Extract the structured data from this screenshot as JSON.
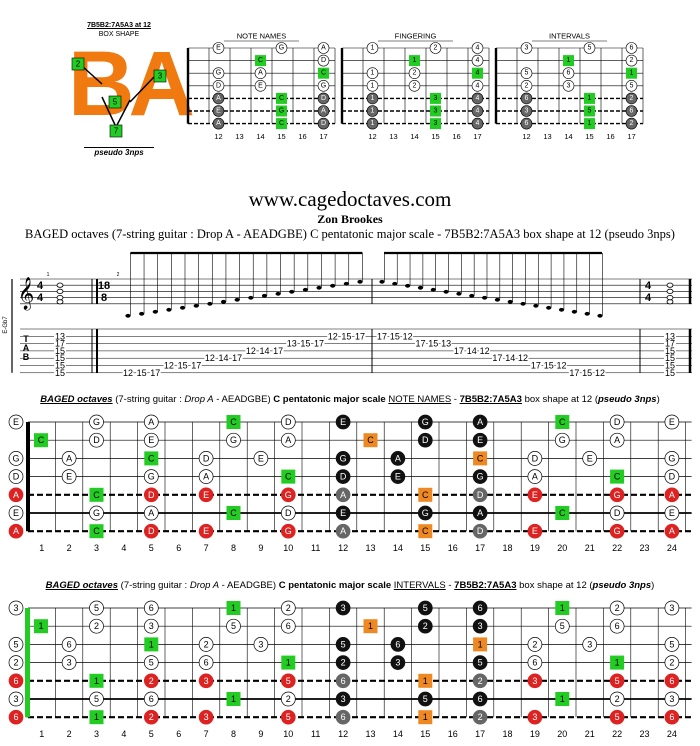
{
  "box": {
    "title": "7B5B2:7A5A3 at 12",
    "subtitle": "BOX SHAPE",
    "letters": "BA",
    "caption": "pseudo 3nps",
    "callouts": [
      "2",
      "5",
      "3",
      "5",
      "7"
    ]
  },
  "mini": [
    {
      "title": "NOTE NAMES",
      "rows": [
        [
          "E",
          "",
          "",
          "G",
          "",
          "A"
        ],
        [
          "",
          "",
          "C",
          "",
          "",
          "D"
        ],
        [
          "G",
          "",
          "A",
          "",
          "",
          "C"
        ],
        [
          "D",
          "",
          "E",
          "",
          "",
          "G"
        ],
        [
          "A",
          "",
          "",
          "C",
          "",
          "D"
        ],
        [
          "E",
          "",
          "",
          "G",
          "",
          "A"
        ],
        [
          "A",
          "",
          "",
          "C",
          "",
          "D"
        ]
      ],
      "hl": [
        [
          1,
          2
        ],
        [
          2,
          5
        ],
        [
          4,
          3
        ],
        [
          5,
          3
        ],
        [
          6,
          3
        ]
      ]
    },
    {
      "title": "FINGERING",
      "rows": [
        [
          "1",
          "",
          "",
          "2",
          "",
          "4"
        ],
        [
          "",
          "",
          "1",
          "",
          "",
          "4"
        ],
        [
          "1",
          "",
          "2",
          "",
          "",
          "4"
        ],
        [
          "1",
          "",
          "2",
          "",
          "",
          "4"
        ],
        [
          "1",
          "",
          "",
          "3",
          "",
          "4"
        ],
        [
          "1",
          "",
          "",
          "3",
          "",
          "4"
        ],
        [
          "1",
          "",
          "",
          "3",
          "",
          "4"
        ]
      ],
      "hl": [
        [
          1,
          2
        ],
        [
          2,
          5
        ],
        [
          4,
          3
        ],
        [
          5,
          3
        ],
        [
          6,
          3
        ]
      ]
    },
    {
      "title": "INTERVALS",
      "rows": [
        [
          "3",
          "",
          "",
          "5",
          "",
          "6"
        ],
        [
          "",
          "",
          "1",
          "",
          "",
          "2"
        ],
        [
          "5",
          "",
          "6",
          "",
          "",
          "1"
        ],
        [
          "2",
          "",
          "3",
          "",
          "",
          "5"
        ],
        [
          "6",
          "",
          "",
          "1",
          "",
          "2"
        ],
        [
          "3",
          "",
          "",
          "5",
          "",
          "6"
        ],
        [
          "6",
          "",
          "",
          "1",
          "",
          "2"
        ]
      ],
      "hl": [
        [
          1,
          2
        ],
        [
          2,
          5
        ],
        [
          4,
          3
        ],
        [
          5,
          3
        ],
        [
          6,
          3
        ]
      ]
    }
  ],
  "mini_frets": [
    "12",
    "13",
    "14",
    "15",
    "16",
    "17"
  ],
  "site": "www.cagedoctaves.com",
  "author": "Zon Brookes",
  "subtitle": "BAGED octaves (7-string guitar : Drop A - AEADGBE) C pentatonic major scale - 7B5B2:7A5A3 box shape at 12 (pseudo 3nps)",
  "score": {
    "time_sig_a": [
      "4",
      "4"
    ],
    "time_sig_b": [
      "18",
      "8"
    ],
    "tuning_label": "E-Gb7",
    "tab_letters": [
      "T",
      "A",
      "B"
    ],
    "measure_numbers": [
      "1",
      "2"
    ],
    "tab_chord_1": [
      "13",
      "17",
      "15",
      "15",
      "15",
      "15"
    ],
    "tab_run_up": [
      [
        "12",
        "15",
        "17"
      ],
      [
        "12",
        "15",
        "17"
      ],
      [
        "12",
        "14",
        "17"
      ],
      [
        "12",
        "14",
        "17"
      ],
      [
        "13",
        "15",
        "17"
      ],
      [
        "12",
        "15",
        "17"
      ]
    ],
    "tab_run_down": [
      [
        "17",
        "15",
        "12"
      ],
      [
        "17",
        "15",
        "13"
      ],
      [
        "17",
        "14",
        "12"
      ],
      [
        "17",
        "14",
        "12"
      ],
      [
        "17",
        "15",
        "12"
      ],
      [
        "17",
        "15",
        "12"
      ]
    ],
    "tab_chord_2": [
      "13",
      "17",
      "15",
      "15",
      "15",
      "15"
    ]
  },
  "big1": {
    "title_parts": [
      "BAGED octaves",
      " (7-string guitar : ",
      "Drop A",
      " - AEADGBE) ",
      "C pentatonic major scale",
      " ",
      "NOTE NAMES",
      " - ",
      "7B5B2:7A5A3",
      " box shape at 12 (",
      "pseudo 3nps",
      ")"
    ],
    "open": [
      "E",
      "",
      "G",
      "D",
      "A",
      "E",
      "A"
    ],
    "cells": [
      [
        [
          3,
          "G",
          "w"
        ],
        [
          5,
          "A",
          "w"
        ],
        [
          8,
          "C",
          "g"
        ],
        [
          10,
          "D",
          "w"
        ],
        [
          12,
          "E",
          "b"
        ],
        [
          15,
          "G",
          "b"
        ],
        [
          17,
          "A",
          "b"
        ],
        [
          20,
          "C",
          "g"
        ],
        [
          22,
          "D",
          "w"
        ],
        [
          24,
          "E",
          "w"
        ]
      ],
      [
        [
          1,
          "C",
          "g"
        ],
        [
          3,
          "D",
          "w"
        ],
        [
          5,
          "E",
          "w"
        ],
        [
          8,
          "G",
          "w"
        ],
        [
          10,
          "A",
          "w"
        ],
        [
          13,
          "C",
          "o"
        ],
        [
          15,
          "D",
          "b"
        ],
        [
          17,
          "E",
          "b"
        ],
        [
          20,
          "G",
          "w"
        ],
        [
          22,
          "A",
          "w"
        ]
      ],
      [
        [
          2,
          "A",
          "w"
        ],
        [
          5,
          "C",
          "g"
        ],
        [
          7,
          "D",
          "w"
        ],
        [
          9,
          "E",
          "w"
        ],
        [
          12,
          "G",
          "b"
        ],
        [
          14,
          "A",
          "b"
        ],
        [
          17,
          "C",
          "o"
        ],
        [
          19,
          "D",
          "w"
        ],
        [
          21,
          "E",
          "w"
        ],
        [
          24,
          "G",
          "w"
        ]
      ],
      [
        [
          2,
          "E",
          "w"
        ],
        [
          5,
          "G",
          "w"
        ],
        [
          7,
          "A",
          "w"
        ],
        [
          10,
          "C",
          "g"
        ],
        [
          12,
          "D",
          "b"
        ],
        [
          14,
          "E",
          "b"
        ],
        [
          17,
          "G",
          "b"
        ],
        [
          19,
          "A",
          "w"
        ],
        [
          22,
          "C",
          "g"
        ],
        [
          24,
          "D",
          "w"
        ]
      ],
      [
        [
          3,
          "C",
          "g"
        ],
        [
          5,
          "D",
          "r"
        ],
        [
          7,
          "E",
          "r"
        ],
        [
          10,
          "G",
          "r"
        ],
        [
          12,
          "A",
          "k"
        ],
        [
          15,
          "C",
          "o"
        ],
        [
          17,
          "D",
          "k"
        ],
        [
          19,
          "E",
          "r"
        ],
        [
          22,
          "G",
          "r"
        ],
        [
          24,
          "A",
          "r"
        ]
      ],
      [
        [
          3,
          "G",
          "w"
        ],
        [
          5,
          "A",
          "w"
        ],
        [
          8,
          "C",
          "g"
        ],
        [
          10,
          "D",
          "w"
        ],
        [
          12,
          "E",
          "b"
        ],
        [
          15,
          "G",
          "b"
        ],
        [
          17,
          "A",
          "b"
        ],
        [
          20,
          "C",
          "g"
        ],
        [
          22,
          "D",
          "w"
        ],
        [
          24,
          "E",
          "w"
        ]
      ],
      [
        [
          3,
          "C",
          "g"
        ],
        [
          5,
          "D",
          "r"
        ],
        [
          7,
          "E",
          "r"
        ],
        [
          10,
          "G",
          "r"
        ],
        [
          12,
          "A",
          "k"
        ],
        [
          15,
          "C",
          "o"
        ],
        [
          17,
          "D",
          "k"
        ],
        [
          19,
          "E",
          "r"
        ],
        [
          22,
          "G",
          "r"
        ],
        [
          24,
          "A",
          "r"
        ]
      ]
    ],
    "open_style": [
      "w",
      "g",
      "w",
      "w",
      "r",
      "w",
      "r"
    ],
    "open_label": [
      "E",
      "C",
      "G",
      "D",
      "A",
      "E",
      "A"
    ]
  },
  "big2": {
    "title_parts": [
      "BAGED octaves",
      " (7-string guitar : ",
      "Drop A",
      " - AEADGBE) ",
      "C pentatonic major scale",
      " ",
      "INTERVALS",
      " - ",
      "7B5B2:7A5A3",
      " box shape at 12 (",
      "pseudo 3nps",
      ")"
    ],
    "open_label": [
      "3",
      "1",
      "5",
      "2",
      "6",
      "3",
      "6"
    ],
    "open_style": [
      "w",
      "g",
      "w",
      "w",
      "r",
      "w",
      "r"
    ],
    "cells": [
      [
        [
          3,
          "5",
          "w"
        ],
        [
          5,
          "6",
          "w"
        ],
        [
          8,
          "1",
          "g"
        ],
        [
          10,
          "2",
          "w"
        ],
        [
          12,
          "3",
          "b"
        ],
        [
          15,
          "5",
          "b"
        ],
        [
          17,
          "6",
          "b"
        ],
        [
          20,
          "1",
          "g"
        ],
        [
          22,
          "2",
          "w"
        ],
        [
          24,
          "3",
          "w"
        ]
      ],
      [
        [
          1,
          "1",
          "g"
        ],
        [
          3,
          "2",
          "w"
        ],
        [
          5,
          "3",
          "w"
        ],
        [
          8,
          "5",
          "w"
        ],
        [
          10,
          "6",
          "w"
        ],
        [
          13,
          "1",
          "o"
        ],
        [
          15,
          "2",
          "b"
        ],
        [
          17,
          "3",
          "b"
        ],
        [
          20,
          "5",
          "w"
        ],
        [
          22,
          "6",
          "w"
        ]
      ],
      [
        [
          2,
          "6",
          "w"
        ],
        [
          5,
          "1",
          "g"
        ],
        [
          7,
          "2",
          "w"
        ],
        [
          9,
          "3",
          "w"
        ],
        [
          12,
          "5",
          "b"
        ],
        [
          14,
          "6",
          "b"
        ],
        [
          17,
          "1",
          "o"
        ],
        [
          19,
          "2",
          "w"
        ],
        [
          21,
          "3",
          "w"
        ],
        [
          24,
          "5",
          "w"
        ]
      ],
      [
        [
          2,
          "3",
          "w"
        ],
        [
          5,
          "5",
          "w"
        ],
        [
          7,
          "6",
          "w"
        ],
        [
          10,
          "1",
          "g"
        ],
        [
          12,
          "2",
          "b"
        ],
        [
          14,
          "3",
          "b"
        ],
        [
          17,
          "5",
          "b"
        ],
        [
          19,
          "6",
          "w"
        ],
        [
          22,
          "1",
          "g"
        ],
        [
          24,
          "2",
          "w"
        ]
      ],
      [
        [
          3,
          "1",
          "g"
        ],
        [
          5,
          "2",
          "r"
        ],
        [
          7,
          "3",
          "r"
        ],
        [
          10,
          "5",
          "r"
        ],
        [
          12,
          "6",
          "k"
        ],
        [
          15,
          "1",
          "o"
        ],
        [
          17,
          "2",
          "k"
        ],
        [
          19,
          "3",
          "r"
        ],
        [
          22,
          "5",
          "r"
        ],
        [
          24,
          "6",
          "r"
        ]
      ],
      [
        [
          3,
          "5",
          "w"
        ],
        [
          5,
          "6",
          "w"
        ],
        [
          8,
          "1",
          "g"
        ],
        [
          10,
          "2",
          "w"
        ],
        [
          12,
          "3",
          "b"
        ],
        [
          15,
          "5",
          "b"
        ],
        [
          17,
          "6",
          "b"
        ],
        [
          20,
          "1",
          "g"
        ],
        [
          22,
          "2",
          "w"
        ],
        [
          24,
          "3",
          "w"
        ]
      ],
      [
        [
          3,
          "1",
          "g"
        ],
        [
          5,
          "2",
          "r"
        ],
        [
          7,
          "3",
          "r"
        ],
        [
          10,
          "5",
          "r"
        ],
        [
          12,
          "6",
          "k"
        ],
        [
          15,
          "1",
          "o"
        ],
        [
          17,
          "2",
          "k"
        ],
        [
          19,
          "3",
          "r"
        ],
        [
          22,
          "5",
          "r"
        ],
        [
          24,
          "6",
          "r"
        ]
      ]
    ]
  },
  "fret_numbers": [
    "1",
    "2",
    "3",
    "4",
    "5",
    "6",
    "7",
    "8",
    "9",
    "10",
    "11",
    "12",
    "13",
    "14",
    "15",
    "16",
    "17",
    "18",
    "19",
    "20",
    "21",
    "22",
    "23",
    "24"
  ],
  "colors": {
    "green": "#22cc22",
    "orange": "#ee8822",
    "red": "#dd2222",
    "black": "#111111",
    "grey": "#666666",
    "box_orange": "#f07a10"
  }
}
